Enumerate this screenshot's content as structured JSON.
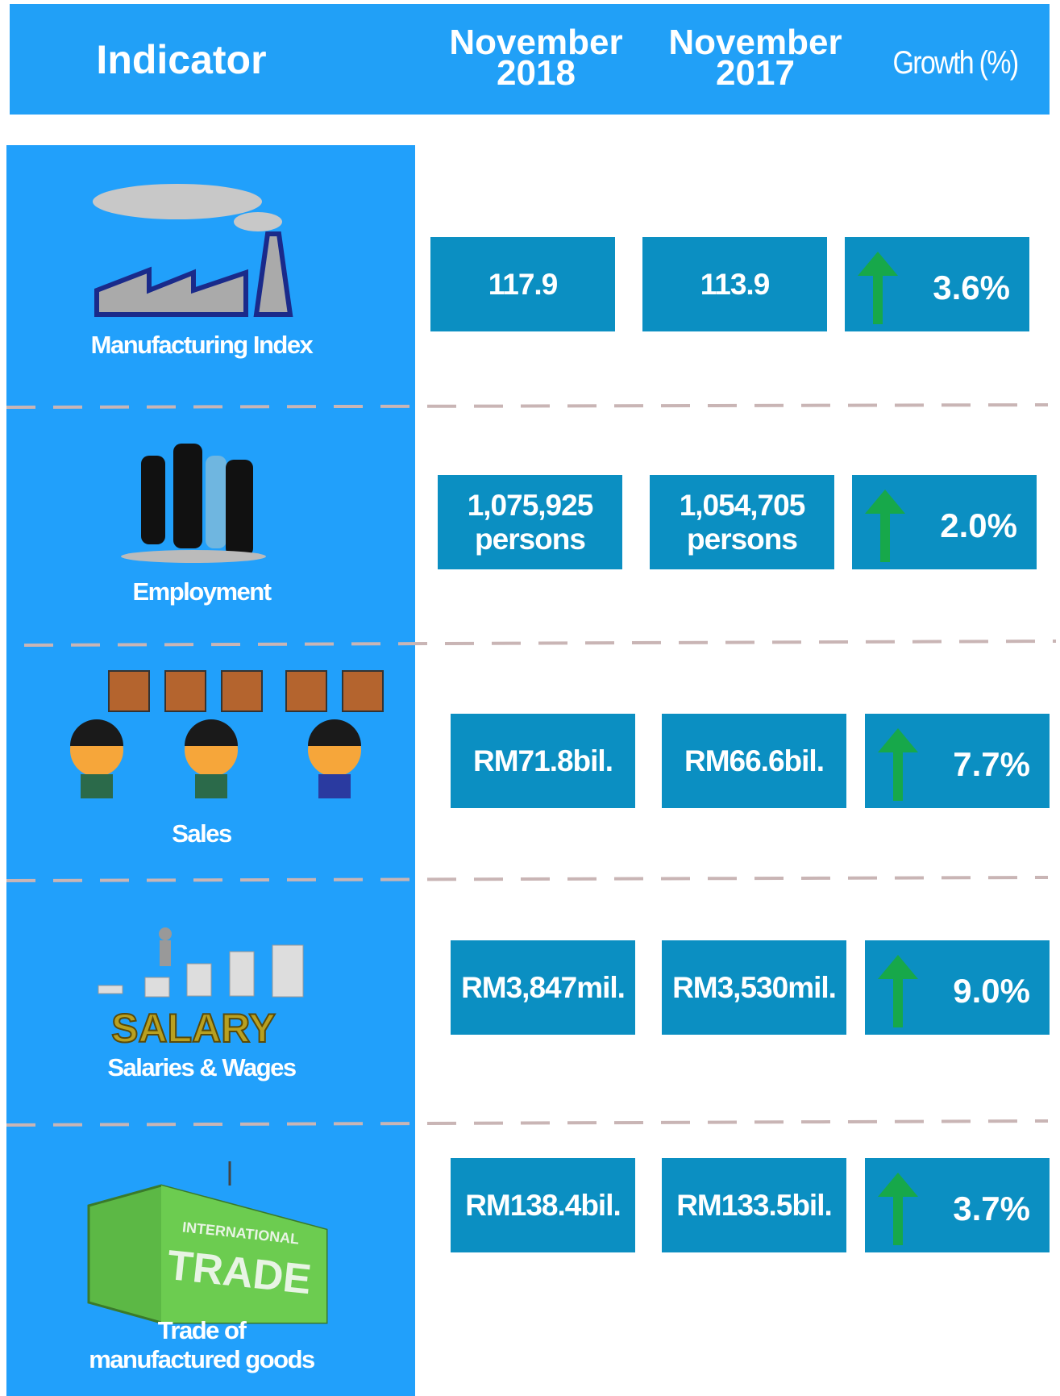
{
  "header": {
    "indicator": "Indicator",
    "col_2018": [
      "November",
      "2018"
    ],
    "col_2017": [
      "November",
      "2017"
    ],
    "growth": "Growth (%)"
  },
  "rows": [
    {
      "label": [
        "Manufacturing Index"
      ],
      "v2018": [
        "117.9"
      ],
      "v2017": [
        "113.9"
      ],
      "growth": "3.6%"
    },
    {
      "label": [
        "Employment"
      ],
      "v2018": [
        "1,075,925",
        "persons"
      ],
      "v2017": [
        "1,054,705",
        "persons"
      ],
      "growth": "2.0%"
    },
    {
      "label": [
        "Sales"
      ],
      "v2018": [
        "RM71.8bil."
      ],
      "v2017": [
        "RM66.6bil."
      ],
      "growth": "7.7%"
    },
    {
      "label": [
        "Salaries & Wages"
      ],
      "v2018": [
        "RM3,847mil."
      ],
      "v2017": [
        "RM3,530mil."
      ],
      "growth": "9.0%"
    },
    {
      "label": [
        "Trade of",
        "manufactured goods"
      ],
      "v2018": [
        "RM138.4bil."
      ],
      "v2017": [
        "RM133.5bil."
      ],
      "growth": "3.7%"
    }
  ]
}
